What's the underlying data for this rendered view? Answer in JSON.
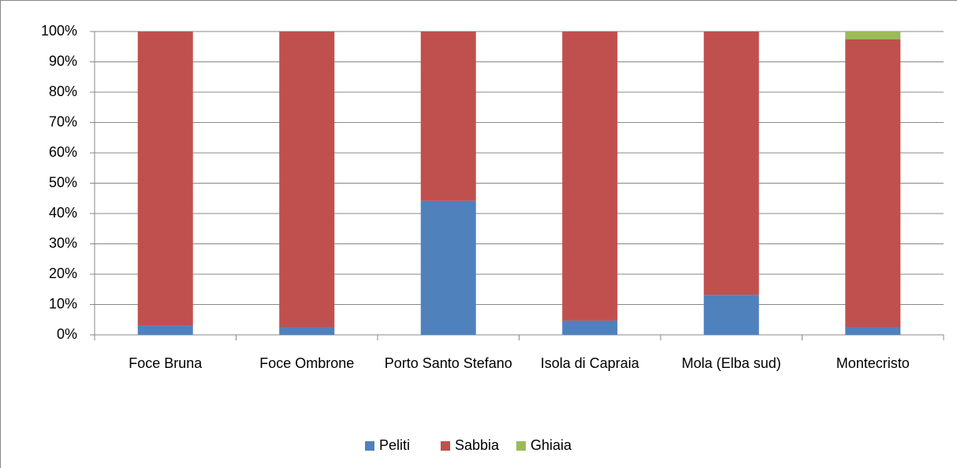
{
  "chart_data": {
    "type": "stacked_bar_100",
    "categories": [
      "Foce Bruna",
      "Foce Ombrone",
      "Porto Santo Stefano",
      "Isola di Capraia",
      "Mola (Elba sud)",
      "Montecristo"
    ],
    "series": [
      {
        "name": "Peliti",
        "color": "#4f81bd",
        "values": [
          3.1,
          2.6,
          44.2,
          4.7,
          13.2,
          2.6
        ]
      },
      {
        "name": "Sabbia",
        "color": "#c0504d",
        "values": [
          96.9,
          97.4,
          55.8,
          95.3,
          86.8,
          94.8
        ]
      },
      {
        "name": "Ghiaia",
        "color": "#9bbb59",
        "values": [
          0,
          0,
          0,
          0,
          0,
          2.6
        ]
      }
    ],
    "ylim": [
      0,
      100
    ],
    "yticks": [
      {
        "value": 0,
        "label": "0%"
      },
      {
        "value": 10,
        "label": "10%"
      },
      {
        "value": 20,
        "label": "20%"
      },
      {
        "value": 30,
        "label": "30%"
      },
      {
        "value": 40,
        "label": "40%"
      },
      {
        "value": 50,
        "label": "50%"
      },
      {
        "value": 60,
        "label": "60%"
      },
      {
        "value": 70,
        "label": "70%"
      },
      {
        "value": 80,
        "label": "80%"
      },
      {
        "value": 90,
        "label": "90%"
      },
      {
        "value": 100,
        "label": "100%"
      }
    ],
    "grid": true,
    "legend": "bottom"
  }
}
